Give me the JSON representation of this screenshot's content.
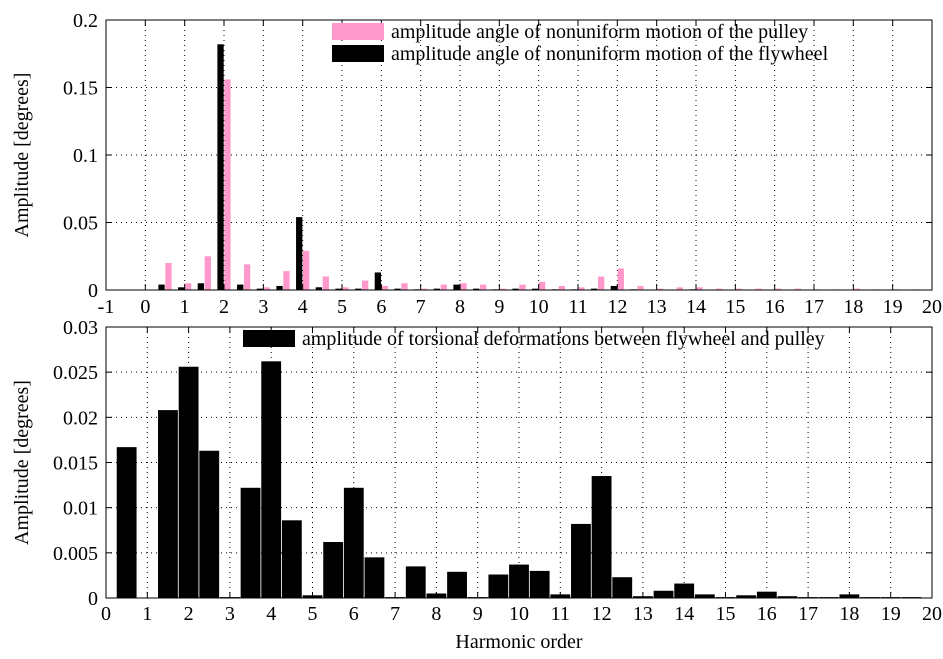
{
  "chart_data": [
    {
      "type": "bar",
      "xlabel": "",
      "ylabel": "Amplitude [degrees]",
      "xlim": [
        -1,
        20
      ],
      "ylim": [
        0,
        0.2
      ],
      "xticks": [
        -1,
        0,
        1,
        2,
        3,
        4,
        5,
        6,
        7,
        8,
        9,
        10,
        11,
        12,
        13,
        14,
        15,
        16,
        17,
        18,
        19,
        20
      ],
      "yticks": [
        0,
        0.05,
        0.1,
        0.15,
        0.2
      ],
      "ytick_labels": [
        "0",
        "0.05",
        "0.1",
        "0.15",
        "0.2"
      ],
      "xtick_labels": [
        "-1",
        "0",
        "1",
        "2",
        "3",
        "4",
        "5",
        "6",
        "7",
        "8",
        "9",
        "10",
        "11",
        "12",
        "13",
        "14",
        "15",
        "16",
        "17",
        "18",
        "19",
        "20"
      ],
      "grid": true,
      "legend_position": "top-right",
      "x": [
        0.5,
        1,
        1.5,
        2,
        2.5,
        3,
        3.5,
        4,
        4.5,
        5,
        5.5,
        6,
        6.5,
        7,
        7.5,
        8,
        8.5,
        9,
        9.5,
        10,
        10.5,
        11,
        11.5,
        12,
        12.5,
        13,
        13.5,
        14,
        14.5,
        15,
        15.5,
        16,
        16.5,
        17,
        17.5,
        18,
        18.5,
        19,
        19.5
      ],
      "series": [
        {
          "name": "amplitude angle of nonuniform motion of the flywheel",
          "color": "#000000",
          "values": [
            0.004,
            0.002,
            0.005,
            0.182,
            0.004,
            0.001,
            0.003,
            0.054,
            0.002,
            0.001,
            0.001,
            0.013,
            0.001,
            0.0005,
            0.001,
            0.004,
            0.001,
            0.0005,
            0.001,
            0.001,
            0.0005,
            0.0005,
            0.001,
            0.003,
            0.0005,
            0.0003,
            0.0003,
            0.0005,
            0.0003,
            0.0002,
            0.0002,
            0.0003,
            0.0002,
            0.0001,
            0.0001,
            0.0002,
            0.0001,
            0.0001,
            0.0001
          ]
        },
        {
          "name": "amplitude angle of nonuniform motion of the pulley",
          "color": "#ff99cc",
          "values": [
            0.02,
            0.005,
            0.025,
            0.156,
            0.019,
            0.002,
            0.014,
            0.029,
            0.01,
            0.002,
            0.007,
            0.003,
            0.005,
            0.001,
            0.004,
            0.005,
            0.004,
            0.001,
            0.004,
            0.006,
            0.003,
            0.002,
            0.01,
            0.016,
            0.003,
            0.001,
            0.002,
            0.002,
            0.001,
            0.001,
            0.001,
            0.001,
            0.001,
            0.0005,
            0.0005,
            0.001,
            0.0005,
            0.0005,
            0.0005
          ]
        }
      ]
    },
    {
      "type": "bar",
      "xlabel": "Harmonic order",
      "ylabel": "Amplitude [degrees]",
      "xlim": [
        0,
        20
      ],
      "ylim": [
        0,
        0.03
      ],
      "xticks": [
        0,
        1,
        2,
        3,
        4,
        5,
        6,
        7,
        8,
        9,
        10,
        11,
        12,
        13,
        14,
        15,
        16,
        17,
        18,
        19,
        20
      ],
      "yticks": [
        0,
        0.005,
        0.01,
        0.015,
        0.02,
        0.025,
        0.03
      ],
      "ytick_labels": [
        "0",
        "0.005",
        "0.01",
        "0.015",
        "0.02",
        "0.025",
        "0.03"
      ],
      "xtick_labels": [
        "0",
        "1",
        "2",
        "3",
        "4",
        "5",
        "6",
        "7",
        "8",
        "9",
        "10",
        "11",
        "12",
        "13",
        "14",
        "15",
        "16",
        "17",
        "18",
        "19",
        "20"
      ],
      "grid": true,
      "legend_position": "top-right",
      "x": [
        0.5,
        1,
        1.5,
        2,
        2.5,
        3,
        3.5,
        4,
        4.5,
        5,
        5.5,
        6,
        6.5,
        7,
        7.5,
        8,
        8.5,
        9,
        9.5,
        10,
        10.5,
        11,
        11.5,
        12,
        12.5,
        13,
        13.5,
        14,
        14.5,
        15,
        15.5,
        16,
        16.5,
        17,
        17.5,
        18,
        18.5,
        19,
        19.5
      ],
      "series": [
        {
          "name": "amplitude of torsional deformations between flywheel and pulley",
          "color": "#000000",
          "values": [
            0.0167,
            0,
            0.0208,
            0.0256,
            0.0163,
            0.0001,
            0.0122,
            0.0262,
            0.0086,
            0.0003,
            0.0062,
            0.0122,
            0.0045,
            0.0001,
            0.0035,
            0.0005,
            0.0029,
            0.0001,
            0.0026,
            0.0037,
            0.003,
            0.0004,
            0.0082,
            0.0135,
            0.0023,
            0.0002,
            0.0008,
            0.0016,
            0.0004,
            0.0001,
            0.0003,
            0.0007,
            0.0002,
            0.0001,
            0.0001,
            0.0004,
            0.0001,
            0.0001,
            0.0001
          ]
        }
      ]
    }
  ]
}
